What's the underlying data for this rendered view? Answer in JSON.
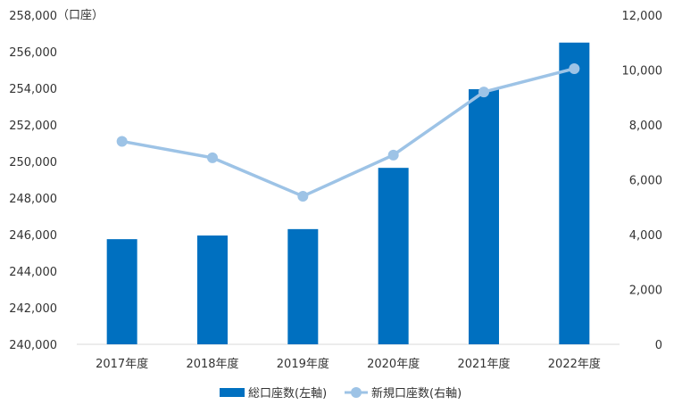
{
  "chart_data": {
    "type": "bar",
    "categories": [
      "2017年度",
      "2018年度",
      "2019年度",
      "2020年度",
      "2021年度",
      "2022年度"
    ],
    "series": [
      {
        "name": "総口座数(左軸)",
        "type": "bar",
        "axis": "left",
        "color": "#0070c0",
        "values": [
          245750,
          245950,
          246300,
          249650,
          253950,
          256500
        ]
      },
      {
        "name": "新規口座数(右軸)",
        "type": "line",
        "axis": "right",
        "color": "#9dc3e6",
        "values": [
          7400,
          6800,
          5400,
          6900,
          9200,
          10050
        ]
      }
    ],
    "left_axis": {
      "unit_label": "（口座）",
      "min": 240000,
      "max": 258000,
      "ticks": [
        "240,000",
        "242,000",
        "244,000",
        "246,000",
        "248,000",
        "250,000",
        "252,000",
        "254,000",
        "256,000",
        "258,000"
      ],
      "tick_values": [
        240000,
        242000,
        244000,
        246000,
        248000,
        250000,
        252000,
        254000,
        256000,
        258000
      ]
    },
    "right_axis": {
      "min": 0,
      "max": 12000,
      "ticks": [
        "0",
        "2,000",
        "4,000",
        "6,000",
        "8,000",
        "10,000",
        "12,000"
      ],
      "tick_values": [
        0,
        2000,
        4000,
        6000,
        8000,
        10000,
        12000
      ]
    },
    "grid": false,
    "legend": "bottom"
  }
}
